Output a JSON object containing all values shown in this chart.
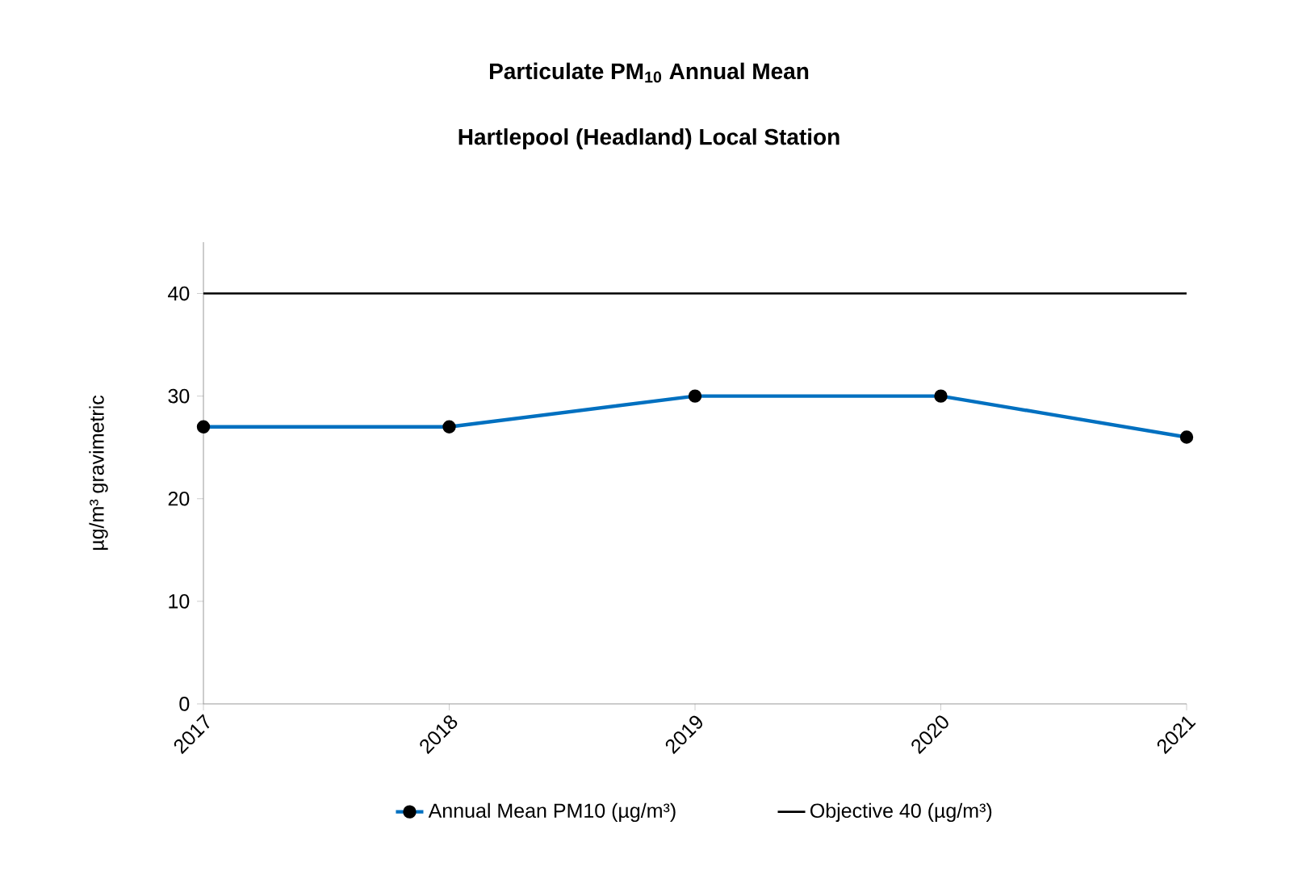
{
  "chart_data": {
    "type": "line",
    "title": "Particulate PM$_{10}$ Annual Mean",
    "subtitle": "Hartlepool (Headland) Local Station",
    "ylabel": "µg/m³ gravimetric",
    "categories": [
      "2017",
      "2018",
      "2019",
      "2020",
      "2021"
    ],
    "series": [
      {
        "name": "Annual Mean PM10 (µg/m³)",
        "color": "#0070c0",
        "values": [
          27,
          27,
          30,
          30,
          26
        ],
        "marker": "circle"
      },
      {
        "name": "Objective 40 (µg/m³)",
        "color": "#000000",
        "values": [
          40,
          40,
          40,
          40,
          40
        ],
        "marker": "none"
      }
    ],
    "ylim": [
      0,
      45
    ],
    "yticks": [
      0,
      10,
      20,
      30,
      40
    ],
    "grid": false,
    "legend": "bottom",
    "line_style": "solid"
  }
}
